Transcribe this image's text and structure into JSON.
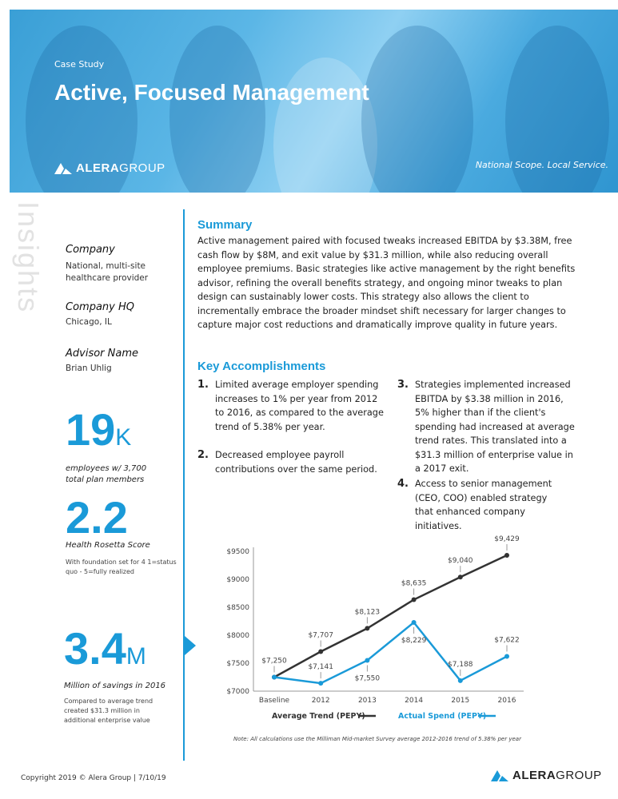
{
  "header": {
    "kicker": "Case Study",
    "title": "Active, Focused Management",
    "logo": "ALERAGROUP",
    "logo_bold": "ALERA",
    "logo_light": "GROUP",
    "tagline": "National Scope. Local Service."
  },
  "sidebar": {
    "watermark": "Insights",
    "fields": [
      {
        "label": "Company",
        "value": "National, multi-site healthcare provider"
      },
      {
        "label": "Company HQ",
        "value": "Chicago, IL"
      },
      {
        "label": "Advisor Name",
        "value": "Brian Uhlig"
      }
    ],
    "stats": [
      {
        "number": "19",
        "unit": "K",
        "caption": "employees w/ 3,700 total plan members",
        "note": ""
      },
      {
        "number": "2.2",
        "unit": "",
        "caption": "Health Rosetta Score",
        "note": "With foundation set for 4 1=status quo - 5=fully realized"
      },
      {
        "number": "3.4",
        "unit": "M",
        "caption": "Million of savings in 2016",
        "note": "Compared to average trend created $31.3 million in additional enterprise value"
      }
    ]
  },
  "summary": {
    "heading": "Summary",
    "text": "Active management paired with focused tweaks increased EBITDA by $3.38M, free cash flow by $8M, and exit value by $31.3 million, while also reducing overall employee premiums. Basic strategies like active management by the right benefits advisor, refining the overall benefits strategy, and ongoing minor tweaks to plan design can sustainably lower costs. This strategy also allows the client to incrementally embrace the broader mindset shift necessary for larger changes to capture major cost reductions and dramatically improve quality in future years."
  },
  "accomplishments": {
    "heading": "Key Accomplishments",
    "items": [
      {
        "num": "1.",
        "text": "Limited average employer spending increases to 1% per year from 2012 to 2016, as compared to the average trend of 5.38% per year."
      },
      {
        "num": "2.",
        "text": "Decreased employee payroll contributions over the same period."
      },
      {
        "num": "3.",
        "text": "Strategies implemented increased EBITDA by $3.38 million in 2016, 5% higher than if the client's spending had increased at average trend rates. This translated into a $31.3 million of enterprise value in a 2017 exit."
      },
      {
        "num": "4.",
        "text": "Access to senior management (CEO, COO) enabled strategy that enhanced company initiatives."
      }
    ]
  },
  "chart_data": {
    "type": "line",
    "categories": [
      "Baseline",
      "2012",
      "2013",
      "2014",
      "2015",
      "2016"
    ],
    "series": [
      {
        "name": "Average Trend (PEPY)",
        "color": "#333333",
        "values": [
          7250,
          7707,
          8123,
          8635,
          9040,
          9429
        ],
        "labels": [
          "$7,250",
          "$7,707",
          "$8,123",
          "$8,635",
          "$9,040",
          "$9,429"
        ]
      },
      {
        "name": "Actual Spend (PEPY)",
        "color": "#1a9ad8",
        "values": [
          7250,
          7141,
          7550,
          8229,
          7188,
          7622
        ],
        "labels": [
          "",
          "$7,141",
          "$7,550",
          "$8,229",
          "$7,188",
          "$7,622"
        ]
      }
    ],
    "yticks": [
      "$7000",
      "$7500",
      "$8000",
      "$8500",
      "$9000",
      "$9500"
    ],
    "ylim": [
      7000,
      9500
    ],
    "grid": false,
    "legend": "bottom",
    "note": "Note: All calculations use the Milliman Mid-market Survey average 2012-2016 trend of 5.38% per year"
  },
  "footer": {
    "copyright": "Copyright 2019 © Alera Group | 7/10/19"
  },
  "colors": {
    "accent": "#1a9ad8"
  }
}
